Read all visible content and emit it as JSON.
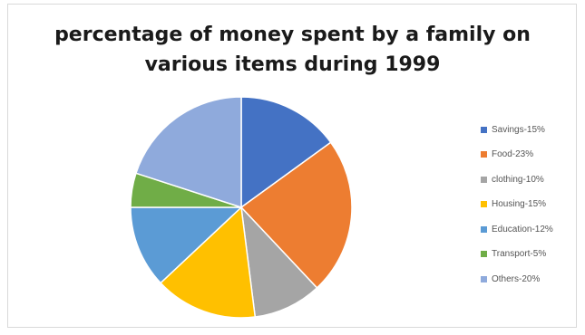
{
  "chart_data": {
    "type": "pie",
    "title": "percentage of money spent by a family on various items during 1999",
    "title_lines": [
      "percentage of money spent by a family on",
      "various items during 1999"
    ],
    "categories": [
      "Savings",
      "Food",
      "clothing",
      "Housing",
      "Education",
      "Transport",
      "Others"
    ],
    "values": [
      15,
      23,
      10,
      15,
      12,
      5,
      20
    ],
    "colors": [
      "#4472c4",
      "#ed7d31",
      "#a5a5a5",
      "#ffc000",
      "#5b9bd5",
      "#70ad47",
      "#8faadc"
    ],
    "legend": {
      "position": "right",
      "entries": [
        "Savings-15%",
        "Food-23%",
        "clothing-10%",
        "Housing-15%",
        "Education-12%",
        "Transport-5%",
        "Others-20%"
      ]
    },
    "start_angle": "12 o'clock",
    "direction": "clockwise"
  }
}
